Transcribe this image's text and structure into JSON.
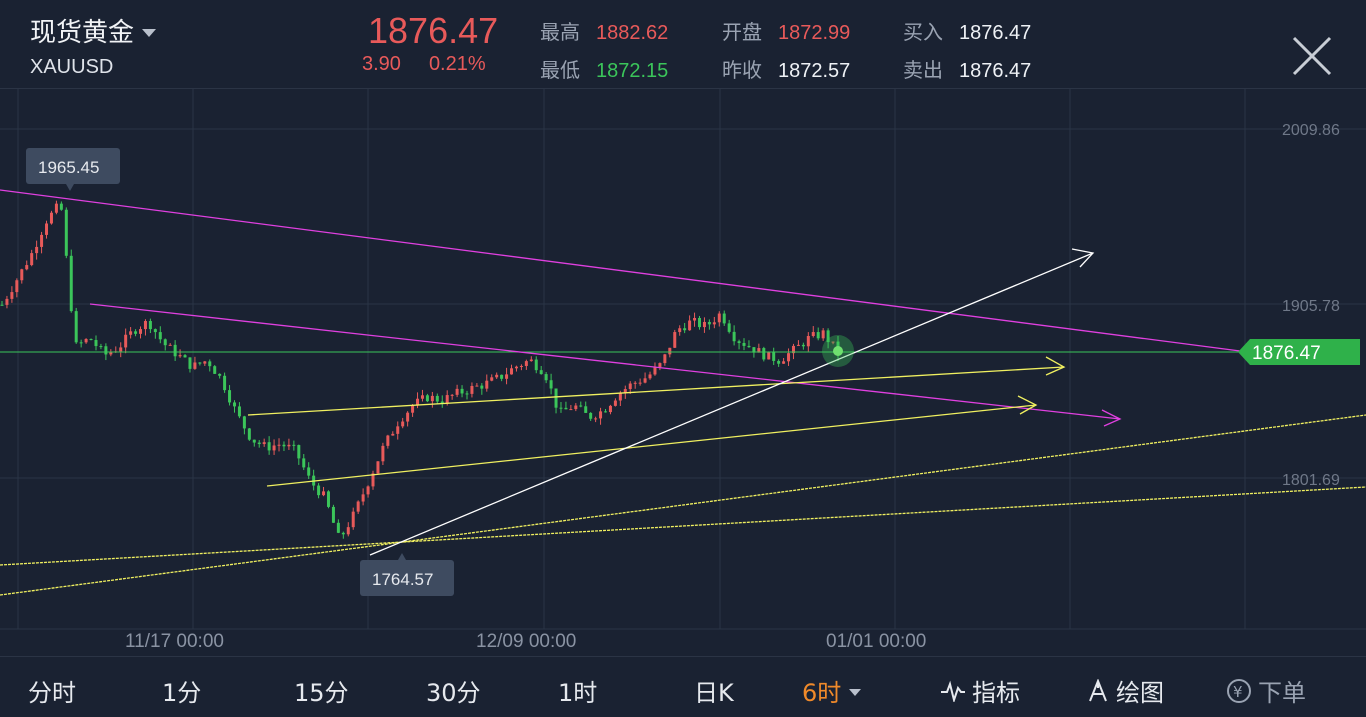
{
  "header": {
    "title": "现货黄金",
    "symbol": "XAUUSD",
    "price": "1876.47",
    "change": "3.90",
    "change_pct": "0.21%",
    "high_label": "最高",
    "high": "1882.62",
    "low_label": "最低",
    "low": "1872.15",
    "open_label": "开盘",
    "open": "1872.99",
    "prev_close_label": "昨收",
    "prev_close": "1872.57",
    "buy_label": "买入",
    "buy": "1876.47",
    "sell_label": "卖出",
    "sell": "1876.47"
  },
  "chart": {
    "y_labels": [
      "2009.86",
      "1905.78",
      "1801.69"
    ],
    "current_price_tag": "1876.47",
    "x_labels": [
      "11/17 00:00",
      "12/09 00:00",
      "01/01 00:00"
    ],
    "high_marker": "1965.45",
    "low_marker": "1764.57",
    "colors": {
      "up": "#e85a5a",
      "down": "#3bc55a",
      "trend_magenta": "#e040e0",
      "trend_yellow": "#f0f060",
      "trend_white": "#ffffff",
      "price_line": "#3bc55a"
    }
  },
  "chart_data": {
    "type": "candlestick",
    "x_labels": [
      "11/17 00:00",
      "12/09 00:00",
      "01/01 00:00"
    ],
    "y_ticks": [
      2009.86,
      1905.78,
      1801.69
    ],
    "last_price": 1876.47,
    "high": 1965.45,
    "low": 1764.57,
    "close_path": [
      1905,
      1920,
      1935,
      1955,
      1965.45,
      1880,
      1885,
      1875,
      1880,
      1890,
      1895,
      1882,
      1875,
      1868,
      1872,
      1860,
      1840,
      1825,
      1820,
      1822,
      1818,
      1800,
      1790,
      1764.57,
      1780,
      1800,
      1820,
      1835,
      1845,
      1850,
      1848,
      1852,
      1855,
      1858,
      1862,
      1868,
      1872,
      1865,
      1840,
      1845,
      1838,
      1842,
      1852,
      1858,
      1862,
      1870,
      1890,
      1895,
      1892,
      1900,
      1885,
      1880,
      1875,
      1872,
      1878,
      1885,
      1888,
      1876.47
    ]
  },
  "bottom_tabs": [
    {
      "label": "分时"
    },
    {
      "label": "1分"
    },
    {
      "label": "15分"
    },
    {
      "label": "30分"
    },
    {
      "label": "1时"
    },
    {
      "label": "日K"
    },
    {
      "label": "6时"
    },
    {
      "label": "指标"
    },
    {
      "label": "绘图"
    },
    {
      "label": "下单"
    }
  ],
  "icons": {
    "close": "close-icon",
    "collapse": "double-chevron-left-icon",
    "indicator": "pulse-icon",
    "draw": "pen-icon",
    "order": "yen-circle-icon"
  }
}
